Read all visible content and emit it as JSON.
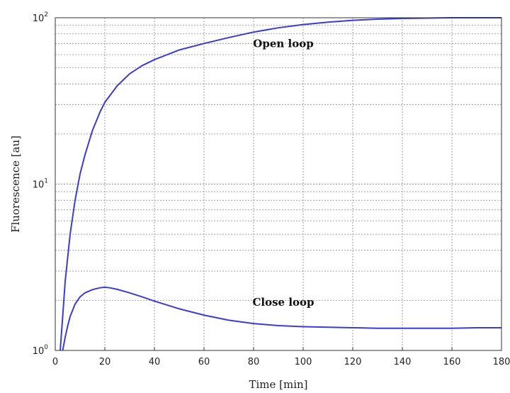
{
  "chart_data": {
    "type": "line",
    "xlabel": "Time [min]",
    "ylabel": "Fluorescence [au]",
    "xlim": [
      0,
      180
    ],
    "ylim": [
      1,
      100
    ],
    "yscale": "log",
    "grid": true,
    "x_ticks": [
      0,
      20,
      40,
      60,
      80,
      100,
      120,
      140,
      160,
      180
    ],
    "y_ticks": [
      {
        "base": "10",
        "exp": "0",
        "value": 1
      },
      {
        "base": "10",
        "exp": "1",
        "value": 10
      },
      {
        "base": "10",
        "exp": "2",
        "value": 100
      }
    ],
    "line_color": "#3b3bdc",
    "series": [
      {
        "x": [
          2,
          3,
          4,
          6,
          8,
          10,
          12,
          15,
          18,
          20,
          25,
          30,
          35,
          40,
          50,
          60,
          70,
          80,
          90,
          100,
          110,
          120,
          130,
          140,
          150,
          160,
          170,
          180
        ],
        "y": [
          1.0,
          1.6,
          2.6,
          5.0,
          8.0,
          11.5,
          15.0,
          21.0,
          27.0,
          31.0,
          39.0,
          46.0,
          51.5,
          56.0,
          64.0,
          70.0,
          76.0,
          82.0,
          87.0,
          91.0,
          94.0,
          96.5,
          98.0,
          99.0,
          99.5,
          100.0,
          100.0,
          100.0
        ]
      },
      {
        "x": [
          3,
          4,
          5,
          6,
          8,
          10,
          12,
          15,
          18,
          20,
          22,
          25,
          30,
          35,
          40,
          50,
          60,
          70,
          80,
          90,
          100,
          110,
          120,
          130,
          140,
          150,
          160,
          170,
          180
        ],
        "y": [
          1.0,
          1.2,
          1.4,
          1.6,
          1.9,
          2.1,
          2.22,
          2.32,
          2.38,
          2.4,
          2.38,
          2.33,
          2.22,
          2.1,
          1.98,
          1.78,
          1.63,
          1.52,
          1.45,
          1.41,
          1.39,
          1.38,
          1.37,
          1.36,
          1.36,
          1.36,
          1.36,
          1.37,
          1.37
        ]
      }
    ],
    "annotations": [
      {
        "text": "Open loop",
        "x": 92,
        "y": 70
      },
      {
        "text": "Close loop",
        "x": 92,
        "y": 1.95
      }
    ]
  }
}
